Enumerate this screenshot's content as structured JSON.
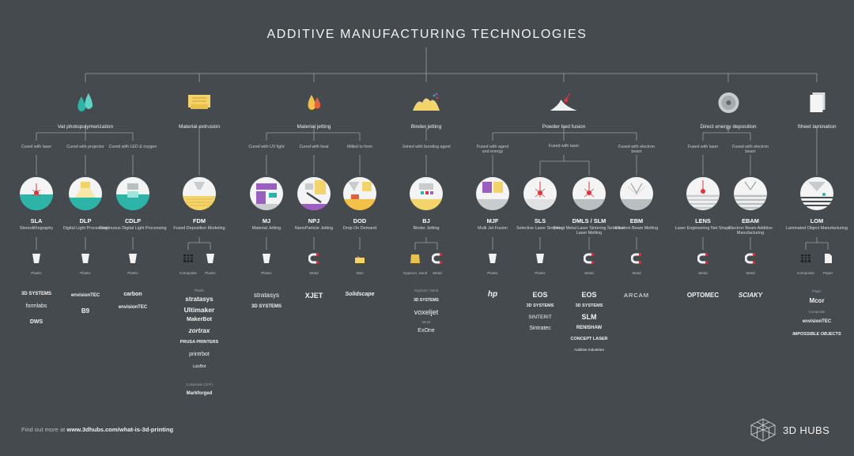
{
  "title": "ADDITIVE MANUFACTURING TECHNOLOGIES",
  "categories": [
    {
      "label": "Vat photopolymerization",
      "icon": "resin-drops-icon"
    },
    {
      "label": "Material extrusion",
      "icon": "filament-spool-icon"
    },
    {
      "label": "Material jetting",
      "icon": "droplets-icon"
    },
    {
      "label": "Binder jetting",
      "icon": "powder-binder-icon"
    },
    {
      "label": "Powder bed fusion",
      "icon": "powder-laser-icon"
    },
    {
      "label": "Direct energy deposition",
      "icon": "wire-spool-icon"
    },
    {
      "label": "Sheet lamination",
      "icon": "paper-sheets-icon"
    }
  ],
  "processes": [
    "Cured with laser",
    "Cured with projector",
    "Cured with LED & oxygen",
    "Cured with UV light",
    "Cured with heat",
    "Milled to form",
    "Joined with bonding agent",
    "Fused with agent and energy",
    "Fused with laser",
    "Fused with electron beam",
    "Fused with laser",
    "Fused with electron beam"
  ],
  "technologies": [
    {
      "abbr": "SLA",
      "full": "Stereolithography"
    },
    {
      "abbr": "DLP",
      "full": "Digital Light Processing"
    },
    {
      "abbr": "CDLP",
      "full": "Continuous Digital Light Processing"
    },
    {
      "abbr": "FDM",
      "full": "Fused Deposition Modeling"
    },
    {
      "abbr": "MJ",
      "full": "Material Jetting"
    },
    {
      "abbr": "NPJ",
      "full": "NanoParticle Jetting"
    },
    {
      "abbr": "DOD",
      "full": "Drop On Demand"
    },
    {
      "abbr": "BJ",
      "full": "Binder Jetting"
    },
    {
      "abbr": "MJF",
      "full": "Multi Jet Fusion"
    },
    {
      "abbr": "SLS",
      "full": "Selective Laser Sintering"
    },
    {
      "abbr": "DMLS / SLM",
      "full": "Direct Metal Laser Sintering Selective Laser Melting"
    },
    {
      "abbr": "EBM",
      "full": "Electron Beam Melting"
    },
    {
      "abbr": "LENS",
      "full": "Laser Engineering Net Shape"
    },
    {
      "abbr": "EBAM",
      "full": "Electron Beam Additive Manufacturing"
    },
    {
      "abbr": "LOM",
      "full": "Laminated Object Manufacturing"
    }
  ],
  "materials": [
    "Plastic",
    "Plastic",
    "Plastic",
    "Composite",
    "Plastic",
    "Plastic",
    "Metal",
    "Wax",
    "Gypsum, Sand",
    "Metal",
    "Plastic",
    "Plastic",
    "Metal",
    "Metal",
    "Metal",
    "Metal",
    "Composite",
    "Paper"
  ],
  "brand_captions": [
    "Plastic",
    "Composite (CFF)",
    "Gypsum / Sand",
    "Metal",
    "Paper",
    "Composite"
  ],
  "brands": [
    "3D SYSTEMS",
    "formlabs",
    "DWS",
    "envisionTEC",
    "B9",
    "carbon",
    "envisionTEC",
    "stratasys",
    "Ultimaker",
    "MakerBot",
    "zortrax",
    "PRUSA PRINTERS",
    "printrbot",
    "LulzBot",
    "Markforged",
    "stratasys",
    "3D SYSTEMS",
    "XJET",
    "Solidscape",
    "3D SYSTEMS",
    "voxeljet",
    "ExOne",
    "hp",
    "EOS",
    "3D SYSTEMS",
    "SINTERIT",
    "Sintratec",
    "EOS",
    "3D SYSTEMS",
    "SLM",
    "RENISHAW",
    "CONCEPT LASER",
    "Additive Industries",
    "ARCAM",
    "OPTOMEC",
    "SCIAKY",
    "Mcor",
    "envisionTEC",
    "IMPOSSIBLE OBJECTS"
  ],
  "footer": {
    "prefix": "Find out more at ",
    "url": "www.3dhubs.com/what-is-3d-printing"
  },
  "logo_text": "3D HUBS",
  "colors": {
    "background": "#444a4e",
    "accent_teal": "#2bb4a7",
    "accent_yellow": "#f3d46a",
    "accent_red": "#e2333b",
    "accent_purple": "#9b5fc0"
  }
}
